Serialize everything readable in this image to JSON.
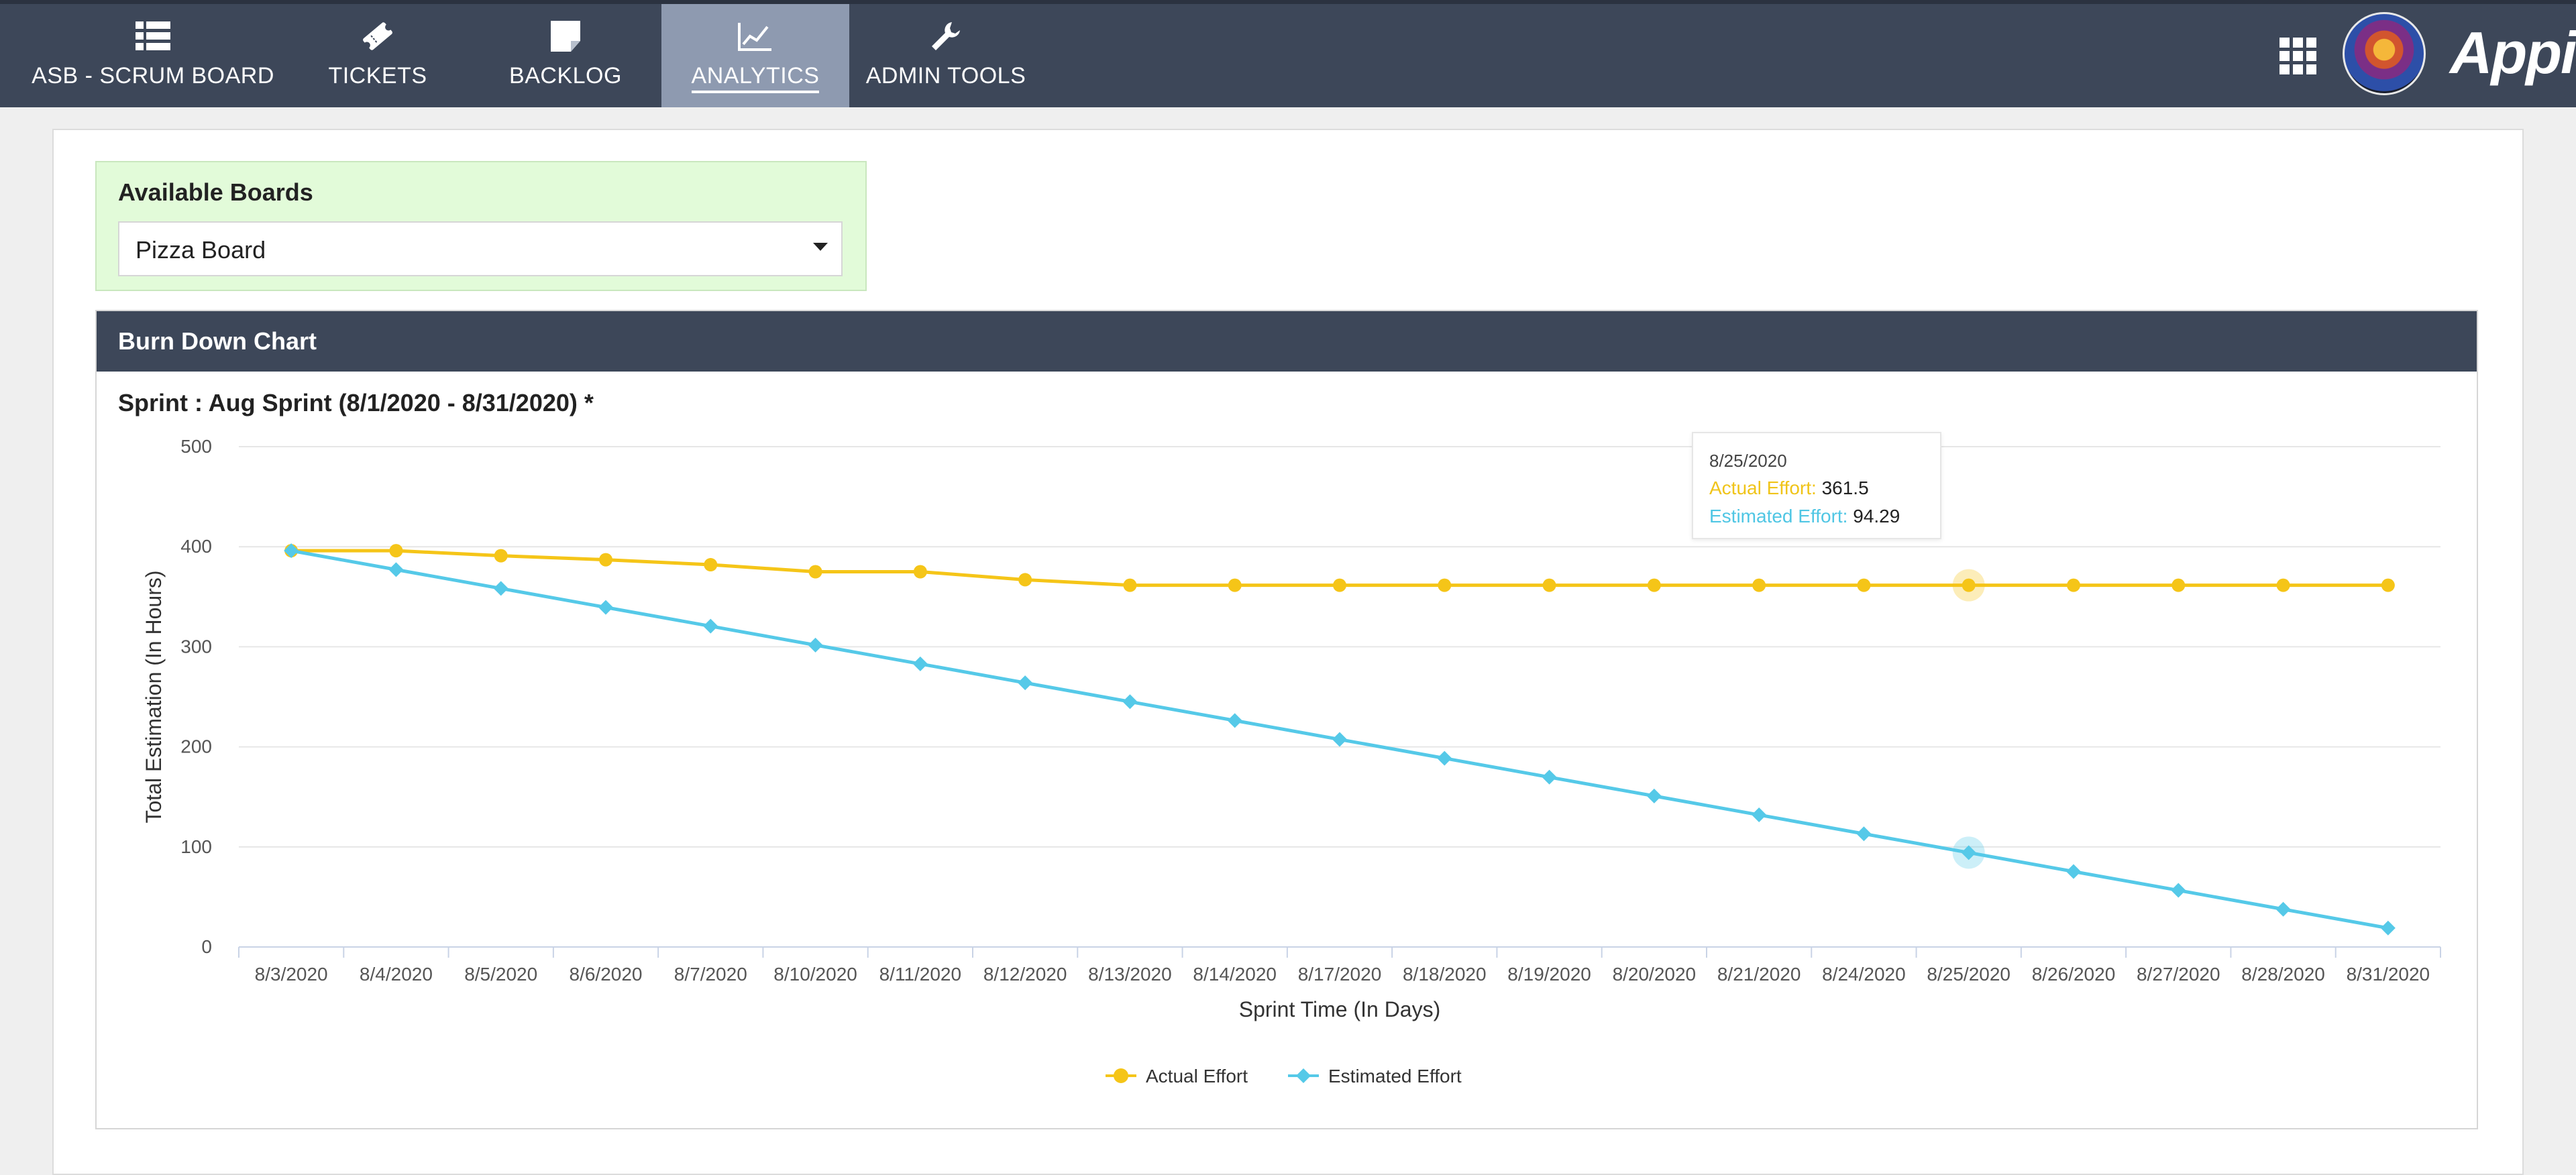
{
  "nav": {
    "tabs": [
      {
        "label": "ASB - SCRUM BOARD",
        "icon": "list-icon"
      },
      {
        "label": "TICKETS",
        "icon": "ticket-icon"
      },
      {
        "label": "BACKLOG",
        "icon": "note-icon"
      },
      {
        "label": "ANALYTICS",
        "icon": "chart-line-icon",
        "active": true
      },
      {
        "label": "ADMIN TOOLS",
        "icon": "wrench-icon"
      }
    ],
    "brand": "Appian",
    "colors": {
      "bar": "#3d4759",
      "active_tab": "#8e9ab0"
    }
  },
  "boards": {
    "title": "Available Boards",
    "selected": "Pizza Board"
  },
  "burndown": {
    "header": "Burn Down Chart",
    "sprint": "Sprint : Aug Sprint (8/1/2020 - 8/31/2020) *",
    "tooltip": {
      "date": "8/25/2020",
      "actual_label": "Actual Effort:",
      "actual_value": "361.5",
      "estimated_label": "Estimated Effort:",
      "estimated_value": "94.29"
    }
  },
  "chart_data": {
    "type": "line",
    "xlabel": "Sprint Time (In Days)",
    "ylabel": "Total Estimation (In Hours)",
    "ylim": [
      0,
      500
    ],
    "yticks": [
      0,
      100,
      200,
      300,
      400,
      500
    ],
    "grid": true,
    "legend_position": "bottom-center",
    "categories": [
      "8/3/2020",
      "8/4/2020",
      "8/5/2020",
      "8/6/2020",
      "8/7/2020",
      "8/10/2020",
      "8/11/2020",
      "8/12/2020",
      "8/13/2020",
      "8/14/2020",
      "8/17/2020",
      "8/18/2020",
      "8/19/2020",
      "8/20/2020",
      "8/21/2020",
      "8/24/2020",
      "8/25/2020",
      "8/26/2020",
      "8/27/2020",
      "8/28/2020",
      "8/31/2020"
    ],
    "series": [
      {
        "name": "Actual Effort",
        "color": "#f5c518",
        "marker": "circle",
        "values": [
          396,
          396,
          391,
          387,
          382,
          375,
          375,
          367,
          361.5,
          361.5,
          361.5,
          361.5,
          361.5,
          361.5,
          361.5,
          361.5,
          361.5,
          361.5,
          361.5,
          361.5,
          361.5
        ]
      },
      {
        "name": "Estimated Effort",
        "color": "#55c9e8",
        "marker": "diamond",
        "values": [
          396,
          377.1,
          358.3,
          339.4,
          320.6,
          301.7,
          282.9,
          264,
          245.1,
          226.3,
          207.4,
          188.6,
          169.7,
          150.9,
          132,
          113.1,
          94.29,
          75.4,
          56.6,
          37.7,
          18.9
        ]
      }
    ],
    "highlight_category": "8/25/2020"
  }
}
